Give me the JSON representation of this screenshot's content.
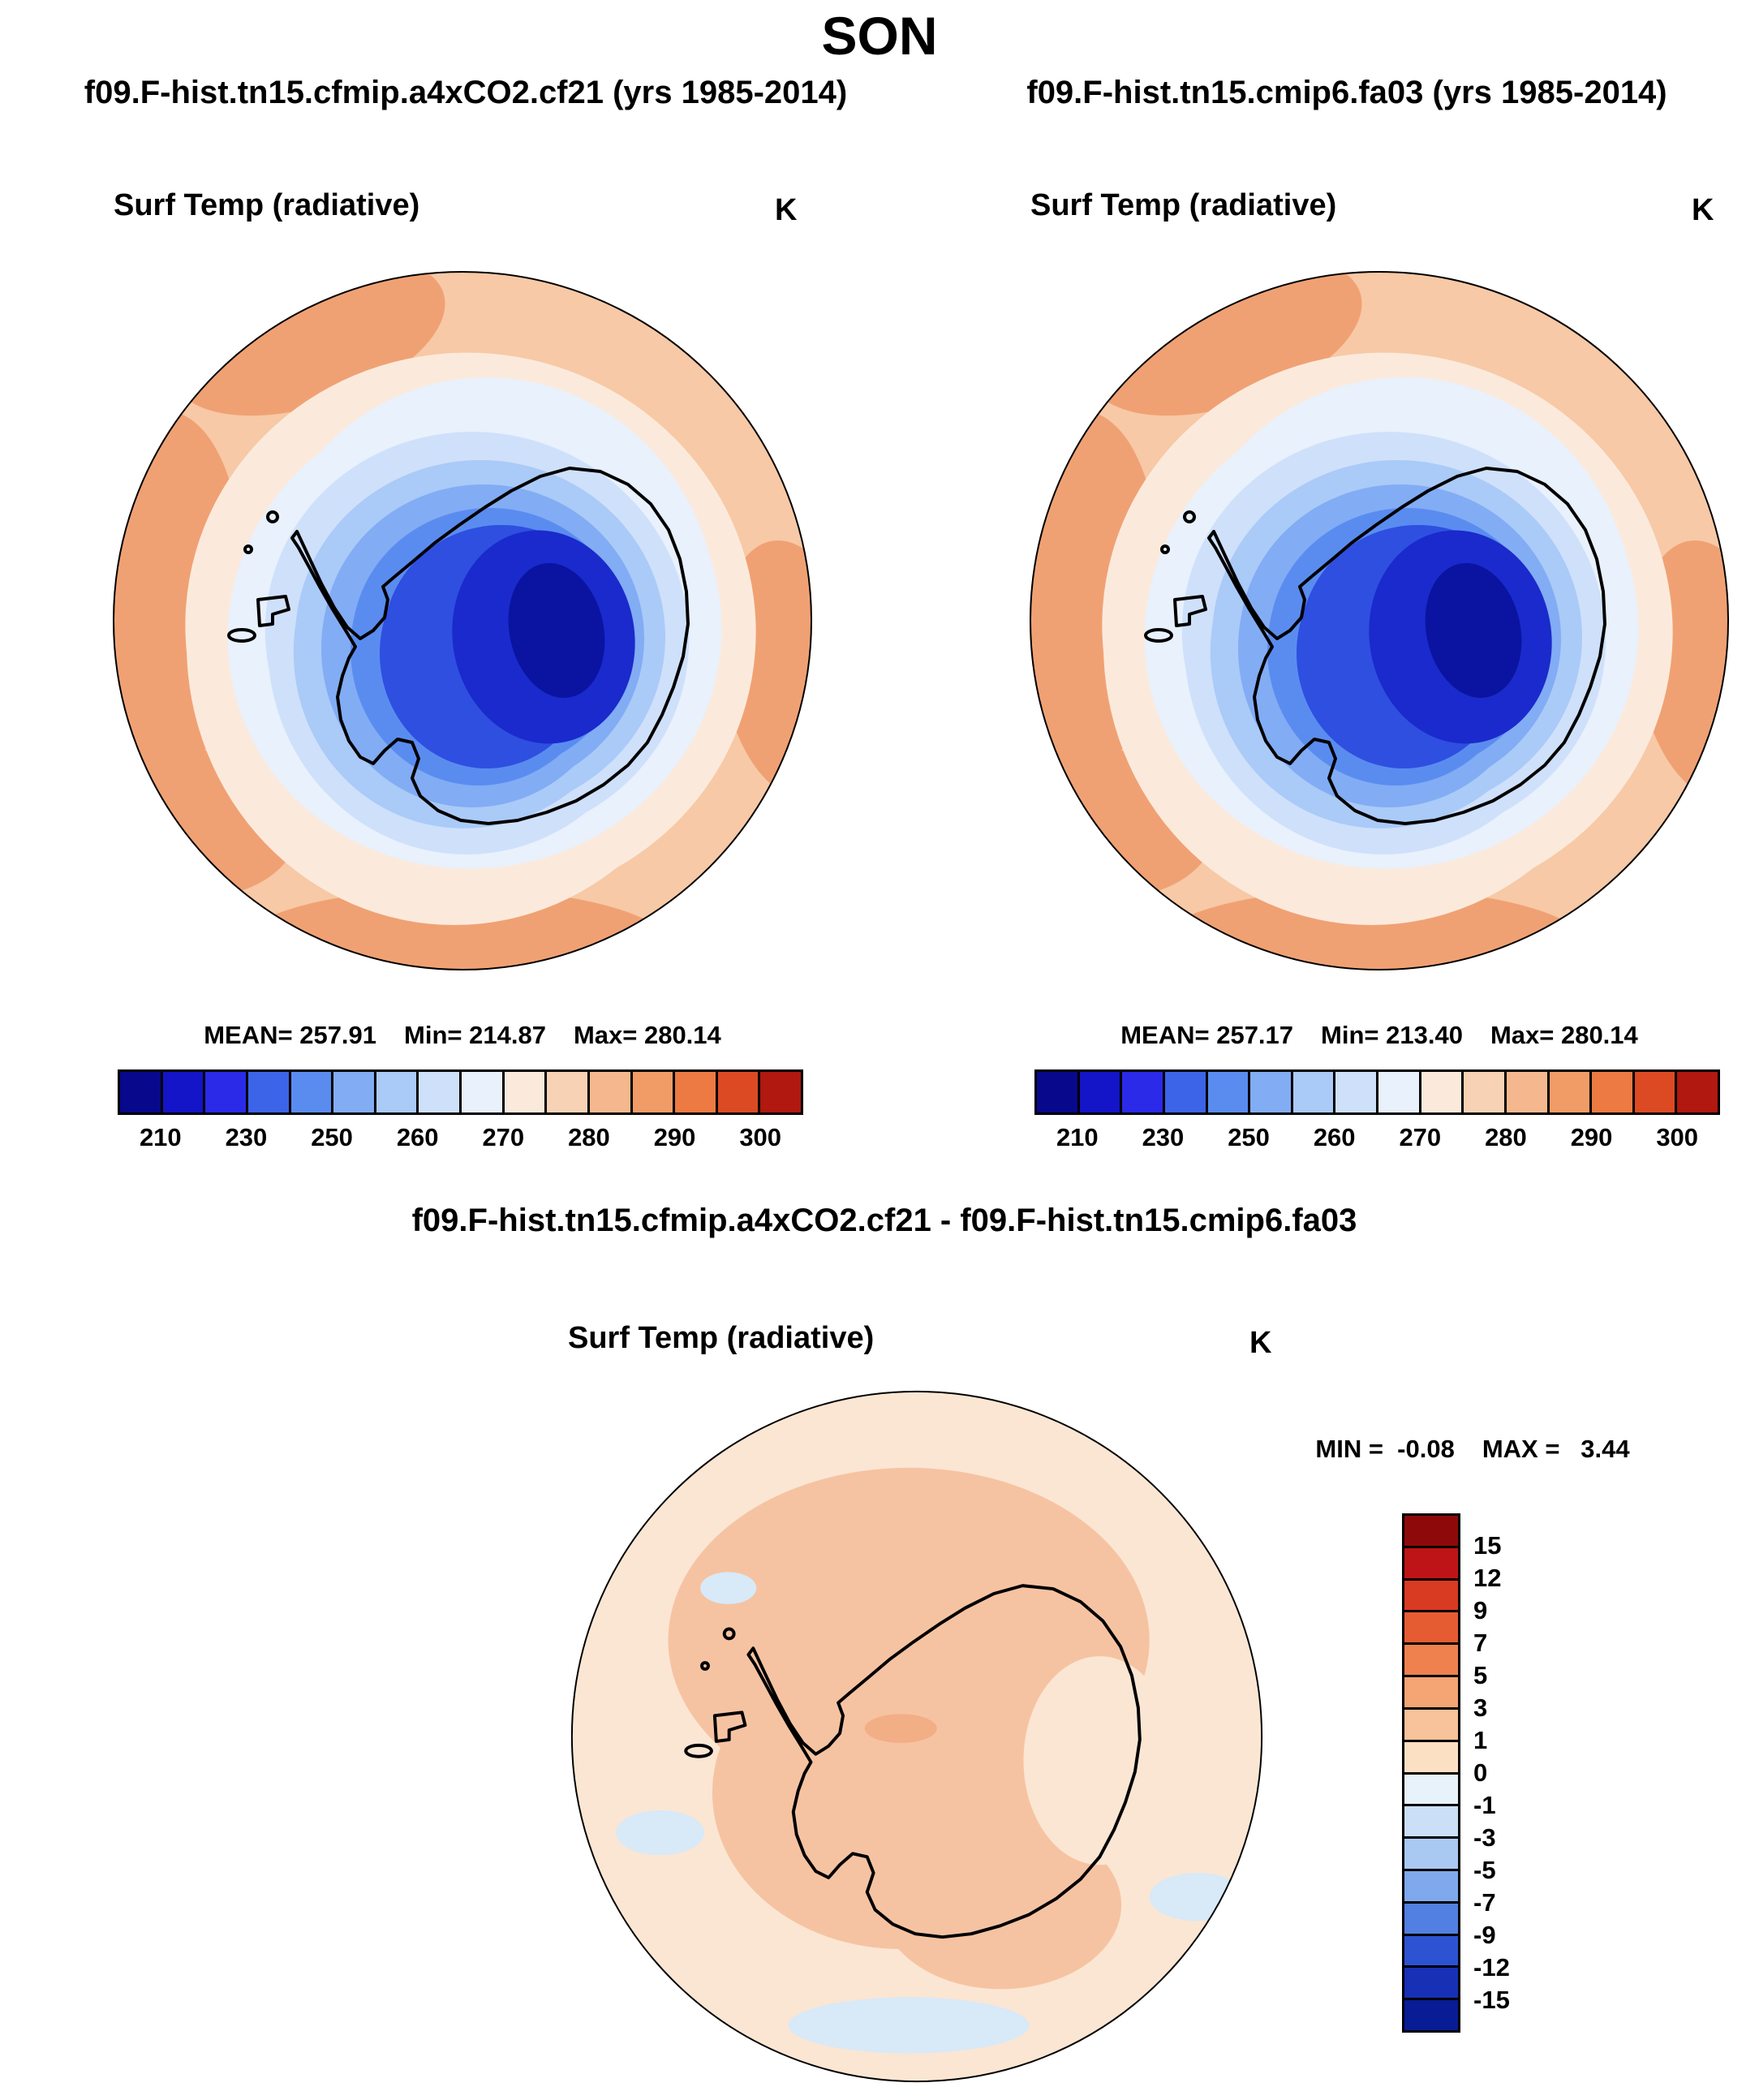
{
  "page_title": "SON",
  "panels": {
    "left": {
      "title": "f09.F-hist.tn15.cfmip.a4xCO2.cf21 (yrs 1985-2014)",
      "field_label": "Surf Temp (radiative)",
      "units": "K",
      "stats": {
        "mean": "MEAN= 257.91",
        "min": "Min= 214.87",
        "max": "Max= 280.14"
      }
    },
    "right": {
      "title": "f09.F-hist.tn15.cmip6.fa03 (yrs 1985-2014)",
      "field_label": "Surf Temp (radiative)",
      "units": "K",
      "stats": {
        "mean": "MEAN= 257.17",
        "min": "Min= 213.40",
        "max": "Max= 280.14"
      }
    },
    "diff": {
      "title": "f09.F-hist.tn15.cfmip.a4xCO2.cf21 - f09.F-hist.tn15.cmip6.fa03",
      "field_label": "Surf Temp (radiative)",
      "units": "K",
      "stats": {
        "min": "MIN =  -0.08",
        "max": "MAX =   3.44"
      }
    }
  },
  "colorbars": {
    "temp": {
      "orientation": "horizontal",
      "colors": [
        "#08088C",
        "#1414C8",
        "#2A2AE8",
        "#3C64E8",
        "#5A8CF0",
        "#82ACF4",
        "#AACAF8",
        "#CFE0FA",
        "#E8F1FC",
        "#FBEADC",
        "#F8D2B4",
        "#F5B88E",
        "#F19C66",
        "#EC7A42",
        "#DC4A24",
        "#B01810"
      ],
      "tick_labels": [
        "210",
        "230",
        "250",
        "260",
        "270",
        "280",
        "290",
        "300"
      ]
    },
    "diff": {
      "orientation": "vertical",
      "colors": [
        "#8E0A0A",
        "#BE1418",
        "#D93A22",
        "#E55C33",
        "#EF814F",
        "#F5A473",
        "#F8C29A",
        "#FBE0C4",
        "#E8F2FB",
        "#CBDFF7",
        "#A9C9F3",
        "#7FA9EC",
        "#527FE2",
        "#2E53D2",
        "#1730B6",
        "#081C96"
      ],
      "tick_labels": [
        "15",
        "12",
        "9",
        "7",
        "5",
        "3",
        "1",
        "0",
        "-1",
        "-3",
        "-5",
        "-7",
        "-9",
        "-12",
        "-15"
      ]
    }
  },
  "chart_data": [
    {
      "type": "heatmap",
      "variant": "polar_stereographic_contour_map",
      "season": "SON",
      "title": "f09.F-hist.tn15.cfmip.a4xCO2.cf21 (yrs 1985-2014)",
      "field": "Surf Temp (radiative)",
      "units": "K",
      "stats": {
        "mean": 257.91,
        "min": 214.87,
        "max": 280.14
      },
      "colorbar_tick_values": [
        210,
        230,
        250,
        260,
        270,
        280,
        290,
        300
      ],
      "region": "Southern Hemisphere polar cap (Antarctica)",
      "pattern": "coldest values (~215 K) over interior East Antarctica in dark blue, warming outward through light blues over the sea-ice zone to ~280 K (orange) over the surrounding Southern Ocean"
    },
    {
      "type": "heatmap",
      "variant": "polar_stereographic_contour_map",
      "season": "SON",
      "title": "f09.F-hist.tn15.cmip6.fa03 (yrs 1985-2014)",
      "field": "Surf Temp (radiative)",
      "units": "K",
      "stats": {
        "mean": 257.17,
        "min": 213.4,
        "max": 280.14
      },
      "colorbar_tick_values": [
        210,
        230,
        250,
        260,
        270,
        280,
        290,
        300
      ],
      "region": "Southern Hemisphere polar cap (Antarctica)",
      "pattern": "nearly identical spatial pattern to the left panel: dark-blue cold core over the Antarctic plateau, orange warm ring over the ocean"
    },
    {
      "type": "heatmap",
      "variant": "polar_stereographic_contour_map_difference",
      "season": "SON",
      "title": "f09.F-hist.tn15.cfmip.a4xCO2.cf21 - f09.F-hist.tn15.cmip6.fa03",
      "field": "Surf Temp (radiative)",
      "units": "K",
      "stats": {
        "min": -0.08,
        "max": 3.44
      },
      "colorbar_tick_values": [
        15,
        12,
        9,
        7,
        5,
        3,
        1,
        0,
        -1,
        -3,
        -5,
        -7,
        -9,
        -12,
        -15
      ],
      "region": "Southern Hemisphere polar cap (Antarctica)",
      "pattern": "weak positive differences (roughly +1 to +3 K, light pink) over the continent and near-zero (pale) differences elsewhere, with a few tiny slightly-negative (pale blue) patches over the ocean"
    }
  ]
}
